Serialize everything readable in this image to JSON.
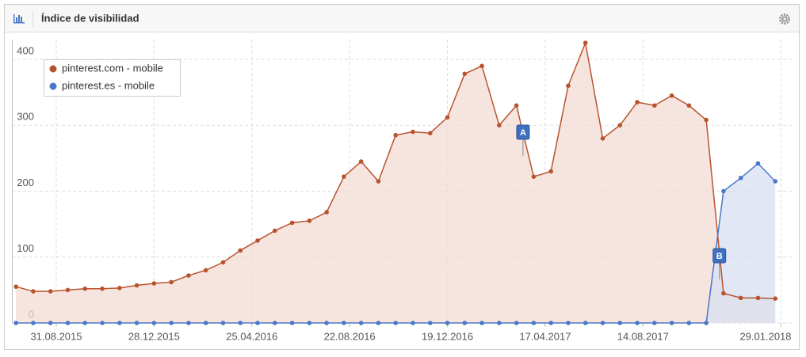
{
  "chart_data": {
    "type": "area",
    "title": "Índice de visibilidad",
    "x": [
      "13.07.2015",
      "03.08.2015",
      "24.08.2015",
      "14.09.2015",
      "05.10.2015",
      "26.10.2015",
      "16.11.2015",
      "07.12.2015",
      "28.12.2015",
      "18.01.2016",
      "08.02.2016",
      "29.02.2016",
      "21.03.2016",
      "11.04.2016",
      "02.05.2016",
      "23.05.2016",
      "13.06.2016",
      "04.07.2016",
      "25.07.2016",
      "15.08.2016",
      "05.09.2016",
      "26.09.2016",
      "17.10.2016",
      "07.11.2016",
      "28.11.2016",
      "19.12.2016",
      "09.01.2017",
      "30.01.2017",
      "20.02.2017",
      "13.03.2017",
      "03.04.2017",
      "24.04.2017",
      "15.05.2017",
      "05.06.2017",
      "26.06.2017",
      "17.07.2017",
      "07.08.2017",
      "28.08.2017",
      "18.09.2017",
      "09.10.2017",
      "30.10.2017",
      "20.11.2017",
      "11.12.2017",
      "01.01.2018",
      "22.01.2018"
    ],
    "series": [
      {
        "name": "pinterest.com - mobile",
        "color": "#b9532e",
        "fill": "#f3dcd4",
        "values": [
          55,
          48,
          48,
          50,
          52,
          52,
          53,
          57,
          60,
          62,
          72,
          80,
          92,
          110,
          125,
          140,
          152,
          155,
          168,
          222,
          245,
          215,
          285,
          290,
          288,
          312,
          378,
          390,
          300,
          330,
          222,
          230,
          360,
          425,
          280,
          300,
          335,
          330,
          345,
          330,
          308,
          45,
          38,
          38,
          37
        ]
      },
      {
        "name": "pinterest.es - mobile",
        "color": "#4a78c8",
        "fill": "#d7dff2",
        "values": [
          0,
          0,
          0,
          0,
          0,
          0,
          0,
          0,
          0,
          0,
          0,
          0,
          0,
          0,
          0,
          0,
          0,
          0,
          0,
          0,
          0,
          0,
          0,
          0,
          0,
          0,
          0,
          0,
          0,
          0,
          0,
          0,
          0,
          0,
          0,
          0,
          0,
          0,
          0,
          0,
          0,
          200,
          220,
          242,
          215
        ]
      }
    ],
    "annotations": [
      {
        "label": "A",
        "x": "21.03.2017"
      },
      {
        "label": "B",
        "x": "15.11.2017"
      }
    ],
    "xlim": [
      "08.07.2015",
      "12.02.2018"
    ],
    "xticks": [
      "31.08.2015",
      "28.12.2015",
      "25.04.2016",
      "22.08.2016",
      "19.12.2016",
      "17.04.2017",
      "14.08.2017",
      "29.01.2018"
    ],
    "ylim": [
      0,
      430
    ],
    "yticks": [
      0,
      100,
      200,
      300,
      400
    ],
    "grid": true,
    "legend": "top-left"
  }
}
